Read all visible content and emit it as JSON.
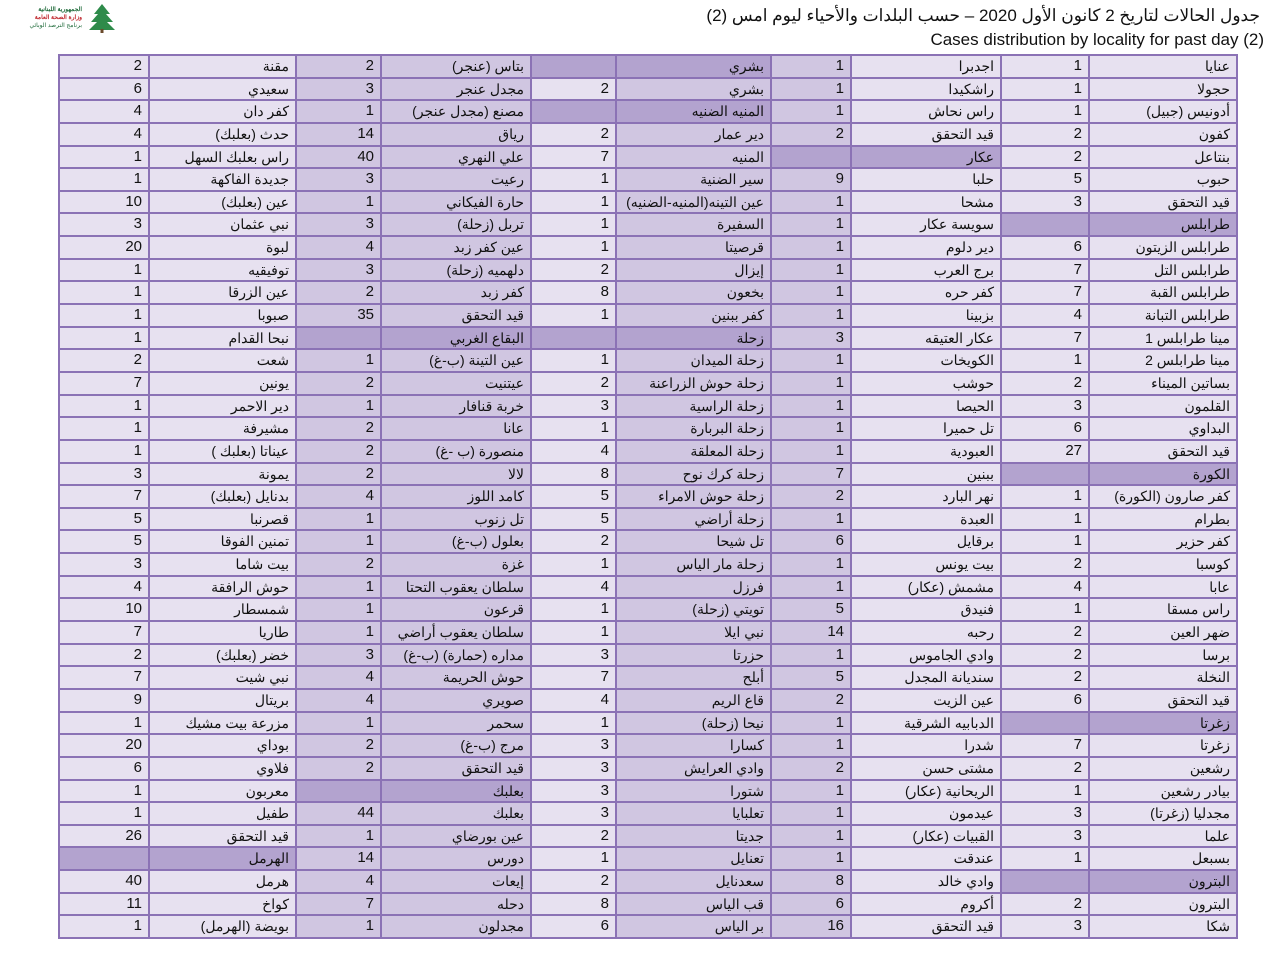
{
  "logo": {
    "lines": [
      "الجمهورية اللبنانية",
      "وزارة الصحة العامة",
      "برنامج الترصد الوبائي"
    ],
    "icon": "cedar-tree-icon"
  },
  "title_ar": "جدول الحالات لتاريخ 2 كانون الأول 2020 – حسب البلدات والأحياء ليوم امس (2)",
  "title_en": "Cases distribution by locality for past day (2)",
  "colors": {
    "border": "#8b72b5",
    "light": "#e7e1f0",
    "mid": "#d0c6e1",
    "header": "#b3a3cf"
  },
  "groups": [
    {
      "rows": [
        [
          "عنايا",
          "1"
        ],
        [
          "حجولا",
          "1"
        ],
        [
          "أدونيس (جبيل)",
          "1"
        ],
        [
          "كفون",
          "2"
        ],
        [
          "بنتاعل",
          "2"
        ],
        [
          "حبوب",
          "5"
        ],
        [
          "قيد التحقق",
          "3"
        ],
        [
          "طرابلس",
          ""
        ],
        [
          "طرابلس الزيتون",
          "6"
        ],
        [
          "طرابلس التل",
          "7"
        ],
        [
          "طرابلس القبة",
          "7"
        ],
        [
          "طرابلس التبانة",
          "4"
        ],
        [
          "مينا طرابلس 1",
          "7"
        ],
        [
          "مينا طرابلس 2",
          "1"
        ],
        [
          "بساتين الميناء",
          "2"
        ],
        [
          "القلمون",
          "3"
        ],
        [
          "البداوي",
          "6"
        ],
        [
          "قيد التحقق",
          "27"
        ],
        [
          "الكورة",
          ""
        ],
        [
          "كفر صارون (الكورة)",
          "1"
        ],
        [
          "بطرام",
          "1"
        ],
        [
          "كفر حزير",
          "1"
        ],
        [
          "كوسبا",
          "2"
        ],
        [
          "عابا",
          "4"
        ],
        [
          "راس مسقا",
          "1"
        ],
        [
          "ضهر العين",
          "2"
        ],
        [
          "برسا",
          "2"
        ],
        [
          "النخلة",
          "2"
        ],
        [
          "قيد التحقق",
          "6"
        ],
        [
          "زغرتا",
          ""
        ],
        [
          "زغرتا",
          "7"
        ],
        [
          "رشعين",
          "2"
        ],
        [
          "بيادر رشعين",
          "1"
        ],
        [
          "مجدليا (زغرتا)",
          "3"
        ],
        [
          "علما",
          "3"
        ],
        [
          "بسبعل",
          "1"
        ],
        [
          "البترون",
          ""
        ],
        [
          "البترون",
          "2"
        ],
        [
          "شكا",
          "3"
        ]
      ]
    },
    {
      "rows": [
        [
          "اجدبرا",
          "1"
        ],
        [
          "راشكيدا",
          "1"
        ],
        [
          "راس نحاش",
          "1"
        ],
        [
          "قيد التحقق",
          "2"
        ],
        [
          "عكار",
          ""
        ],
        [
          "حلبا",
          "9"
        ],
        [
          "مشحا",
          "1"
        ],
        [
          "سويسة عكار",
          "1"
        ],
        [
          "دير دلوم",
          "1"
        ],
        [
          "برج العرب",
          "1"
        ],
        [
          "كفر حره",
          "1"
        ],
        [
          "بزبينا",
          "1"
        ],
        [
          "عكار العتيقه",
          "3"
        ],
        [
          "الكويخات",
          "1"
        ],
        [
          "حوشب",
          "1"
        ],
        [
          "الحيصا",
          "1"
        ],
        [
          "تل حميرا",
          "1"
        ],
        [
          "العبودية",
          "1"
        ],
        [
          "ببنين",
          "7"
        ],
        [
          "نهر البارد",
          "2"
        ],
        [
          "العبدة",
          "1"
        ],
        [
          "برقايل",
          "6"
        ],
        [
          "بيت يونس",
          "1"
        ],
        [
          "مشمش (عكار)",
          "1"
        ],
        [
          "فنيدق",
          "5"
        ],
        [
          "رحبه",
          "14"
        ],
        [
          "وادي الجاموس",
          "1"
        ],
        [
          "سنديانة المجدل",
          "5"
        ],
        [
          "عين الزيت",
          "2"
        ],
        [
          "الدبابيه الشرقية",
          "1"
        ],
        [
          "شدرا",
          "1"
        ],
        [
          "مشتى حسن",
          "2"
        ],
        [
          "الريحانية (عكار)",
          "1"
        ],
        [
          "عيدمون",
          "1"
        ],
        [
          "القبيات (عكار)",
          "1"
        ],
        [
          "عندقت",
          "1"
        ],
        [
          "وادي خالد",
          "8"
        ],
        [
          "أكروم",
          "6"
        ],
        [
          "قيد التحقق",
          "16"
        ]
      ]
    },
    {
      "rows": [
        [
          "بشري",
          ""
        ],
        [
          "بشري",
          "2"
        ],
        [
          "المنيه الضنيه",
          ""
        ],
        [
          "دير عمار",
          "2"
        ],
        [
          "المنيه",
          "7"
        ],
        [
          "سير الضنية",
          "1"
        ],
        [
          "عين التينه(المنيه-الضنيه)",
          "1"
        ],
        [
          "السفيرة",
          "1"
        ],
        [
          "قرصيتا",
          "1"
        ],
        [
          "إيزال",
          "2"
        ],
        [
          "بخعون",
          "8"
        ],
        [
          "كفر ببنين",
          "1"
        ],
        [
          "زحلة",
          ""
        ],
        [
          "زحلة الميدان",
          "1"
        ],
        [
          "زحلة حوش الزراعنة",
          "2"
        ],
        [
          "زحلة الراسية",
          "3"
        ],
        [
          "زحلة البربارة",
          "1"
        ],
        [
          "زحلة المعلقة",
          "4"
        ],
        [
          "زحلة كرك نوح",
          "8"
        ],
        [
          "زحلة حوش الامراء",
          "5"
        ],
        [
          "زحلة أراضي",
          "5"
        ],
        [
          "تل شيحا",
          "2"
        ],
        [
          "زحلة مار الياس",
          "1"
        ],
        [
          "فرزل",
          "4"
        ],
        [
          "تويتي (زحلة)",
          "1"
        ],
        [
          "نبي ايلا",
          "1"
        ],
        [
          "حزرتا",
          "3"
        ],
        [
          "أبلح",
          "7"
        ],
        [
          "قاع الريم",
          "4"
        ],
        [
          "نيحا (زحلة)",
          "1"
        ],
        [
          "كسارا",
          "3"
        ],
        [
          "وادي العرايش",
          "3"
        ],
        [
          "شتورا",
          "3"
        ],
        [
          "تعلبايا",
          "3"
        ],
        [
          "جديتا",
          "2"
        ],
        [
          "تعنايل",
          "1"
        ],
        [
          "سعدنايل",
          "2"
        ],
        [
          "قب الياس",
          "8"
        ],
        [
          "بر الياس",
          "6"
        ]
      ]
    },
    {
      "rows": [
        [
          "بتاس (عنجر)",
          "2"
        ],
        [
          "مجدل عنجر",
          "3"
        ],
        [
          "مصنع (مجدل عنجر)",
          "1"
        ],
        [
          "رياق",
          "14"
        ],
        [
          "علي النهري",
          "40"
        ],
        [
          "رعيت",
          "3"
        ],
        [
          "حارة الفيكاني",
          "1"
        ],
        [
          "تربل (زحلة)",
          "3"
        ],
        [
          "عين كفر زبد",
          "4"
        ],
        [
          "دلهميه (زحلة)",
          "3"
        ],
        [
          "كفر زبد",
          "2"
        ],
        [
          "قيد التحقق",
          "35"
        ],
        [
          "البقاع الغربي",
          ""
        ],
        [
          "عين التينة (ب-غ)",
          "1"
        ],
        [
          "عيتنيت",
          "2"
        ],
        [
          "خربة قنافار",
          "1"
        ],
        [
          "عانا",
          "2"
        ],
        [
          "منصورة (ب -غ)",
          "2"
        ],
        [
          "لالا",
          "2"
        ],
        [
          "كامد اللوز",
          "4"
        ],
        [
          "تل زنوب",
          "1"
        ],
        [
          "بعلول (ب-غ)",
          "1"
        ],
        [
          "غزة",
          "2"
        ],
        [
          "سلطان يعقوب التحتا",
          "1"
        ],
        [
          "قرعون",
          "1"
        ],
        [
          "سلطان يعقوب أراضي",
          "1"
        ],
        [
          "مداره (حمارة) (ب-غ)",
          "3"
        ],
        [
          "حوش الحريمة",
          "4"
        ],
        [
          "صويري",
          "4"
        ],
        [
          "سحمر",
          "1"
        ],
        [
          "مرج (ب-غ)",
          "2"
        ],
        [
          "قيد التحقق",
          "2"
        ],
        [
          "بعلبك",
          ""
        ],
        [
          "بعلبك",
          "44"
        ],
        [
          "عين بورضاي",
          "1"
        ],
        [
          "دورس",
          "14"
        ],
        [
          "إيعات",
          "4"
        ],
        [
          "دحله",
          "7"
        ],
        [
          "مجدلون",
          "1"
        ]
      ]
    },
    {
      "rows": [
        [
          "مقنة",
          "2"
        ],
        [
          "سعيدي",
          "6"
        ],
        [
          "كفر دان",
          "4"
        ],
        [
          "حدث (بعلبك)",
          "4"
        ],
        [
          "راس بعلبك السهل",
          "1"
        ],
        [
          "جديدة الفاكهة",
          "1"
        ],
        [
          "عين (بعلبك)",
          "10"
        ],
        [
          "نبي عثمان",
          "3"
        ],
        [
          "لبوة",
          "20"
        ],
        [
          "توفيقيه",
          "1"
        ],
        [
          "عين الزرقا",
          "1"
        ],
        [
          "صبوبا",
          "1"
        ],
        [
          "نبحا القدام",
          "1"
        ],
        [
          "شعت",
          "2"
        ],
        [
          "يونين",
          "7"
        ],
        [
          "دير الاحمر",
          "1"
        ],
        [
          "مشيرفة",
          "1"
        ],
        [
          "عيناتا (بعلبك )",
          "1"
        ],
        [
          "يمونة",
          "3"
        ],
        [
          "بدنايل (بعلبك)",
          "7"
        ],
        [
          "قصرنبا",
          "5"
        ],
        [
          "تمنين الفوقا",
          "5"
        ],
        [
          "بيت شاما",
          "3"
        ],
        [
          "حوش الرافقة",
          "4"
        ],
        [
          "شمسطار",
          "10"
        ],
        [
          "طاريا",
          "7"
        ],
        [
          "خضر (بعلبك)",
          "2"
        ],
        [
          "نبي شيت",
          "7"
        ],
        [
          "بريتال",
          "9"
        ],
        [
          "مزرعة بيت مشيك",
          "1"
        ],
        [
          "بوداي",
          "20"
        ],
        [
          "فلاوي",
          "6"
        ],
        [
          "معربون",
          "1"
        ],
        [
          "طفيل",
          "1"
        ],
        [
          "قيد التحقق",
          "26"
        ],
        [
          "الهرمل",
          ""
        ],
        [
          "هرمل",
          "40"
        ],
        [
          "كواخ",
          "11"
        ],
        [
          "بويضة (الهرمل)",
          "1"
        ]
      ]
    }
  ]
}
